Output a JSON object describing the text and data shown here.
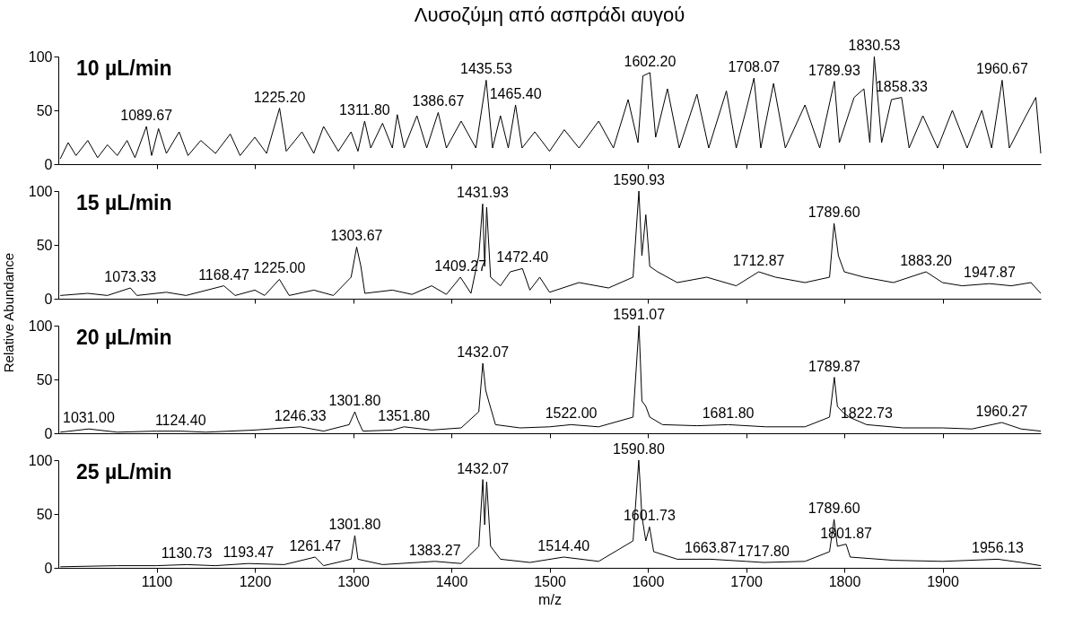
{
  "chart_data": [
    {
      "type": "line",
      "title": "Λυσοζύμη από ασπράδι αυγού",
      "xlim": [
        1000,
        2000
      ],
      "xticks": [
        1100,
        1200,
        1300,
        1400,
        1500,
        1600,
        1700,
        1800,
        1900
      ],
      "ylim": [
        0,
        100
      ],
      "yticks": [
        0,
        50,
        100
      ],
      "tick_labels": "y",
      "grid": false,
      "x": [
        1002,
        1010,
        1018,
        1030,
        1040,
        1050,
        1060,
        1070,
        1078,
        1089.67,
        1095,
        1102,
        1110,
        1123,
        1132,
        1145,
        1160,
        1175,
        1185,
        1200,
        1212,
        1225.2,
        1232,
        1248,
        1260,
        1270,
        1285,
        1298,
        1305,
        1311.8,
        1318,
        1330,
        1340,
        1345,
        1352,
        1365,
        1375,
        1386.67,
        1395,
        1410,
        1425,
        1430,
        1435.53,
        1442,
        1450,
        1458,
        1465.4,
        1472,
        1485,
        1500,
        1515,
        1530,
        1550,
        1565,
        1580,
        1590,
        1595,
        1602.2,
        1608,
        1620,
        1632,
        1650,
        1662,
        1680,
        1690,
        1700,
        1708.07,
        1715,
        1728,
        1740,
        1760,
        1775,
        1789.93,
        1795,
        1810,
        1820,
        1826,
        1830.53,
        1838,
        1848,
        1858.33,
        1866,
        1880,
        1895,
        1910,
        1925,
        1940,
        1950,
        1960.67,
        1968,
        1985,
        1995,
        2000
      ],
      "series": [
        {
          "color": "#000000",
          "values": [
            5,
            20,
            8,
            22,
            6,
            18,
            8,
            22,
            6,
            35,
            8,
            33,
            10,
            30,
            8,
            22,
            10,
            28,
            8,
            25,
            10,
            52,
            12,
            30,
            10,
            35,
            12,
            30,
            12,
            40,
            15,
            38,
            15,
            46,
            15,
            45,
            15,
            48,
            15,
            40,
            15,
            45,
            78,
            15,
            45,
            15,
            55,
            15,
            30,
            12,
            32,
            15,
            40,
            15,
            60,
            20,
            82,
            85,
            25,
            70,
            15,
            65,
            15,
            68,
            15,
            50,
            80,
            15,
            75,
            15,
            55,
            15,
            77,
            20,
            62,
            70,
            20,
            100,
            20,
            60,
            62,
            15,
            45,
            15,
            50,
            15,
            50,
            15,
            78,
            15,
            45,
            62,
            10
          ]
        }
      ],
      "annotations": [
        "10 µL/min",
        {
          "text": "1089.67",
          "x": 1089.67,
          "y": 35
        },
        {
          "text": "1225.20",
          "x": 1225.2,
          "y": 52
        },
        {
          "text": "1311.80",
          "x": 1311.8,
          "y": 40
        },
        {
          "text": "1386.67",
          "x": 1386.67,
          "y": 48
        },
        {
          "text": "1435.53",
          "x": 1435.53,
          "y": 78
        },
        {
          "text": "1465.40",
          "x": 1465.4,
          "y": 55
        },
        {
          "text": "1602.20",
          "x": 1602.2,
          "y": 85
        },
        {
          "text": "1708.07",
          "x": 1708.07,
          "y": 80
        },
        {
          "text": "1789.93",
          "x": 1789.93,
          "y": 77
        },
        {
          "text": "1830.53",
          "x": 1830.53,
          "y": 100
        },
        {
          "text": "1858.33",
          "x": 1858.33,
          "y": 62
        },
        {
          "text": "1960.67",
          "x": 1960.67,
          "y": 78
        }
      ]
    },
    {
      "type": "line",
      "ylabel": "Relative Abundance",
      "xlim": [
        1000,
        2000
      ],
      "xticks": [
        1100,
        1200,
        1300,
        1400,
        1500,
        1600,
        1700,
        1800,
        1900
      ],
      "ylim": [
        0,
        100
      ],
      "yticks": [
        0,
        50,
        100
      ],
      "tick_labels": "y",
      "grid": false,
      "x": [
        1002,
        1030,
        1050,
        1073.33,
        1080,
        1110,
        1130,
        1168.47,
        1180,
        1200,
        1210,
        1225,
        1235,
        1260,
        1280,
        1298,
        1303.67,
        1308,
        1312,
        1340,
        1360,
        1380,
        1395,
        1409.27,
        1420,
        1428,
        1431.93,
        1434,
        1436,
        1440,
        1450,
        1460,
        1472.4,
        1480,
        1490,
        1500,
        1530,
        1560,
        1585,
        1590.93,
        1594,
        1598,
        1602,
        1610,
        1630,
        1660,
        1690,
        1712.87,
        1730,
        1760,
        1785,
        1789.6,
        1794,
        1800,
        1820,
        1850,
        1883.2,
        1900,
        1920,
        1947.87,
        1970,
        1990,
        2000
      ],
      "series": [
        {
          "color": "#000000",
          "values": [
            3,
            5,
            3,
            10,
            3,
            6,
            3,
            12,
            3,
            8,
            3,
            18,
            3,
            8,
            3,
            20,
            48,
            30,
            5,
            8,
            4,
            12,
            4,
            20,
            5,
            40,
            88,
            30,
            85,
            20,
            12,
            25,
            28,
            8,
            20,
            6,
            15,
            10,
            20,
            100,
            40,
            78,
            30,
            25,
            15,
            20,
            12,
            25,
            20,
            15,
            20,
            70,
            40,
            25,
            20,
            15,
            25,
            15,
            12,
            14,
            12,
            15,
            5
          ]
        }
      ],
      "annotations": [
        "15 µL/min",
        {
          "text": "1073.33",
          "x": 1073.33,
          "y": 10
        },
        {
          "text": "1168.47",
          "x": 1168.47,
          "y": 12
        },
        {
          "text": "1225.00",
          "x": 1225.0,
          "y": 18
        },
        {
          "text": "1303.67",
          "x": 1303.67,
          "y": 48
        },
        {
          "text": "1409.27",
          "x": 1409.27,
          "y": 20
        },
        {
          "text": "1431.93",
          "x": 1431.93,
          "y": 88
        },
        {
          "text": "1472.40",
          "x": 1472.4,
          "y": 28
        },
        {
          "text": "1590.93",
          "x": 1590.93,
          "y": 100
        },
        {
          "text": "1712.87",
          "x": 1712.87,
          "y": 25
        },
        {
          "text": "1789.60",
          "x": 1789.6,
          "y": 70
        },
        {
          "text": "1883.20",
          "x": 1883.2,
          "y": 25
        },
        {
          "text": "1947.87",
          "x": 1947.87,
          "y": 14
        }
      ]
    },
    {
      "type": "line",
      "xlim": [
        1000,
        2000
      ],
      "xticks": [
        1100,
        1200,
        1300,
        1400,
        1500,
        1600,
        1700,
        1800,
        1900
      ],
      "ylim": [
        0,
        100
      ],
      "yticks": [
        0,
        50,
        100
      ],
      "tick_labels": "y",
      "grid": false,
      "x": [
        1002,
        1031,
        1060,
        1100,
        1124.4,
        1150,
        1200,
        1230,
        1246.33,
        1270,
        1296,
        1301.8,
        1305,
        1310,
        1340,
        1351.8,
        1380,
        1410,
        1428,
        1432.07,
        1435,
        1438,
        1445,
        1470,
        1500,
        1522,
        1550,
        1585,
        1591.07,
        1594,
        1598,
        1602,
        1615,
        1650,
        1681.8,
        1720,
        1760,
        1785,
        1789.87,
        1793,
        1798,
        1805,
        1822.73,
        1860,
        1900,
        1930,
        1960.27,
        1980,
        2000
      ],
      "series": [
        {
          "color": "#000000",
          "values": [
            1,
            4,
            1,
            2,
            2,
            1,
            3,
            5,
            6,
            2,
            8,
            20,
            12,
            2,
            3,
            6,
            3,
            5,
            20,
            65,
            40,
            30,
            8,
            5,
            6,
            8,
            6,
            15,
            100,
            30,
            25,
            15,
            8,
            7,
            8,
            6,
            6,
            15,
            52,
            25,
            20,
            15,
            8,
            5,
            5,
            4,
            10,
            4,
            2
          ]
        }
      ],
      "annotations": [
        "20 µL/min",
        {
          "text": "1031.00",
          "x": 1031.0,
          "y": 4
        },
        {
          "text": "1124.40",
          "x": 1124.4,
          "y": 2
        },
        {
          "text": "1246.33",
          "x": 1246.33,
          "y": 6
        },
        {
          "text": "1301.80",
          "x": 1301.8,
          "y": 20
        },
        {
          "text": "1351.80",
          "x": 1351.8,
          "y": 6
        },
        {
          "text": "1432.07",
          "x": 1432.07,
          "y": 65
        },
        {
          "text": "1522.00",
          "x": 1522.0,
          "y": 8
        },
        {
          "text": "1591.07",
          "x": 1591.07,
          "y": 100
        },
        {
          "text": "1681.80",
          "x": 1681.8,
          "y": 8
        },
        {
          "text": "1789.87",
          "x": 1789.87,
          "y": 52
        },
        {
          "text": "1822.73",
          "x": 1822.73,
          "y": 8
        },
        {
          "text": "1960.27",
          "x": 1960.27,
          "y": 10
        }
      ]
    },
    {
      "type": "line",
      "xlabel": "m/z",
      "xlim": [
        1000,
        2000
      ],
      "xticks": [
        1100,
        1200,
        1300,
        1400,
        1500,
        1600,
        1700,
        1800,
        1900
      ],
      "ylim": [
        0,
        100
      ],
      "yticks": [
        0,
        50,
        100
      ],
      "grid": false,
      "x": [
        1002,
        1060,
        1100,
        1130.73,
        1160,
        1193.47,
        1230,
        1261.47,
        1270,
        1298,
        1301.8,
        1305,
        1330,
        1383.27,
        1410,
        1428,
        1432.07,
        1434,
        1436,
        1440,
        1450,
        1480,
        1514.4,
        1550,
        1585,
        1590.8,
        1594,
        1598,
        1601.73,
        1606,
        1630,
        1663.87,
        1700,
        1717.8,
        1760,
        1785,
        1789.6,
        1793,
        1801.87,
        1806,
        1850,
        1900,
        1956.13,
        1980,
        2000
      ],
      "series": [
        {
          "color": "#000000",
          "values": [
            1,
            2,
            2,
            3,
            2,
            4,
            3,
            10,
            2,
            8,
            30,
            8,
            3,
            6,
            4,
            20,
            82,
            40,
            80,
            20,
            8,
            5,
            10,
            6,
            25,
            100,
            48,
            25,
            38,
            15,
            8,
            8,
            6,
            5,
            6,
            15,
            45,
            20,
            22,
            10,
            7,
            6,
            8,
            5,
            2
          ]
        }
      ],
      "annotations": [
        "25 µL/min",
        {
          "text": "1130.73",
          "x": 1130.73,
          "y": 3
        },
        {
          "text": "1193.47",
          "x": 1193.47,
          "y": 4
        },
        {
          "text": "1261.47",
          "x": 1261.47,
          "y": 10
        },
        {
          "text": "1301.80",
          "x": 1301.8,
          "y": 30
        },
        {
          "text": "1383.27",
          "x": 1383.27,
          "y": 6
        },
        {
          "text": "1432.07",
          "x": 1432.07,
          "y": 82
        },
        {
          "text": "1514.40",
          "x": 1514.4,
          "y": 10
        },
        {
          "text": "1590.80",
          "x": 1590.8,
          "y": 100
        },
        {
          "text": "1601.73",
          "x": 1601.73,
          "y": 38
        },
        {
          "text": "1663.87",
          "x": 1663.87,
          "y": 8
        },
        {
          "text": "1717.80",
          "x": 1717.8,
          "y": 5
        },
        {
          "text": "1789.60",
          "x": 1789.6,
          "y": 45
        },
        {
          "text": "1801.87",
          "x": 1801.87,
          "y": 22
        },
        {
          "text": "1956.13",
          "x": 1956.13,
          "y": 8
        }
      ]
    }
  ]
}
